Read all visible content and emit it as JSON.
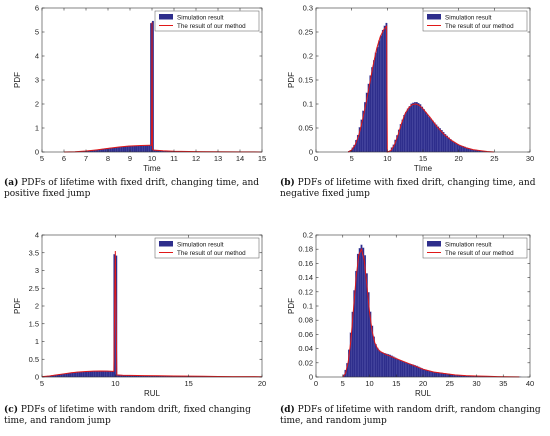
{
  "figure": {
    "bar_color": "#2e2e8c",
    "line_color": "#e01818",
    "axis_color": "#333333"
  },
  "captions": [
    {
      "tag": "(a)",
      "text": " PDFs of lifetime with fixed drift, changing time, and positive fixed jump"
    },
    {
      "tag": "(b)",
      "text": " PDFs of lifetime with fixed drift, changing time, and negative fixed jump"
    },
    {
      "tag": "(c)",
      "text": " PDFs of lifetime with random drift, fixed changing time, and random jump"
    },
    {
      "tag": "(d)",
      "text": " PDFs of lifetime with random drift, random changing time, and random jump"
    }
  ],
  "chart_data": [
    {
      "type": "bar",
      "id": "a",
      "title": "",
      "xlabel": "Time",
      "ylabel": "PDF",
      "xlim": [
        5,
        15
      ],
      "ylim": [
        0,
        6
      ],
      "xticks": [
        5,
        6,
        7,
        8,
        9,
        10,
        11,
        12,
        13,
        14,
        15
      ],
      "yticks": [
        0,
        1,
        2,
        3,
        4,
        5,
        6
      ],
      "legend": [
        "Simulation result",
        "The result of our method"
      ],
      "legend_position": "top-right",
      "x": [
        6.0,
        6.5,
        7.0,
        7.5,
        8.0,
        8.5,
        9.0,
        9.5,
        9.9,
        9.98,
        10.0,
        10.02,
        10.1,
        10.5,
        11.0,
        12.0,
        13.0,
        14.0,
        15.0
      ],
      "series": [
        {
          "name": "Simulation result",
          "kind": "histogram",
          "values": [
            0.0,
            0.01,
            0.04,
            0.09,
            0.15,
            0.21,
            0.25,
            0.27,
            0.28,
            0.28,
            5.4,
            0.1,
            0.08,
            0.05,
            0.03,
            0.015,
            0.008,
            0.004,
            0.002
          ]
        },
        {
          "name": "The result of our method",
          "kind": "line",
          "values": [
            0.0,
            0.01,
            0.04,
            0.09,
            0.15,
            0.21,
            0.25,
            0.27,
            0.28,
            0.28,
            5.4,
            0.1,
            0.08,
            0.05,
            0.03,
            0.015,
            0.008,
            0.004,
            0.002
          ]
        }
      ]
    },
    {
      "type": "bar",
      "id": "b",
      "title": "",
      "xlabel": "TIme",
      "ylabel": "PDF",
      "xlim": [
        0,
        30
      ],
      "ylim": [
        0,
        0.3
      ],
      "xticks": [
        0,
        5,
        10,
        15,
        20,
        25,
        30
      ],
      "yticks": [
        0,
        0.05,
        0.1,
        0.15,
        0.2,
        0.25,
        0.3
      ],
      "legend": [
        "Simulation result",
        "The result of our method"
      ],
      "legend_position": "top-right",
      "x": [
        4.5,
        5.0,
        5.5,
        6.0,
        6.5,
        7.0,
        7.5,
        8.0,
        8.5,
        9.0,
        9.5,
        9.9,
        10.0,
        10.5,
        11.0,
        11.5,
        12.0,
        12.5,
        13.0,
        13.5,
        14.0,
        14.5,
        15.0,
        16.0,
        17.0,
        18.0,
        19.0,
        20.0,
        21.0,
        22.0,
        23.0,
        24.0,
        25.0
      ],
      "series": [
        {
          "name": "Simulation result",
          "kind": "histogram",
          "values": [
            0.0,
            0.004,
            0.015,
            0.035,
            0.065,
            0.1,
            0.14,
            0.18,
            0.215,
            0.24,
            0.255,
            0.262,
            0.0,
            0.003,
            0.015,
            0.035,
            0.06,
            0.08,
            0.092,
            0.099,
            0.1,
            0.097,
            0.09,
            0.072,
            0.052,
            0.036,
            0.024,
            0.015,
            0.009,
            0.005,
            0.003,
            0.001,
            0.0
          ]
        },
        {
          "name": "The result of our method",
          "kind": "line",
          "values": [
            0.0,
            0.004,
            0.015,
            0.035,
            0.065,
            0.1,
            0.14,
            0.18,
            0.215,
            0.24,
            0.255,
            0.262,
            0.0,
            0.003,
            0.015,
            0.035,
            0.06,
            0.08,
            0.092,
            0.099,
            0.1,
            0.097,
            0.09,
            0.072,
            0.052,
            0.036,
            0.024,
            0.015,
            0.009,
            0.005,
            0.003,
            0.001,
            0.0
          ]
        }
      ]
    },
    {
      "type": "bar",
      "id": "c",
      "title": "",
      "xlabel": "RUL",
      "ylabel": "PDF",
      "xlim": [
        5,
        20
      ],
      "ylim": [
        0,
        4
      ],
      "xticks": [
        5,
        10,
        15,
        20
      ],
      "yticks": [
        0,
        0.5,
        1,
        1.5,
        2,
        2.5,
        3,
        3.5,
        4
      ],
      "legend": [
        "Simulation result",
        "The result of our method"
      ],
      "legend_position": "top-right",
      "x": [
        5.0,
        5.5,
        6.0,
        6.5,
        7.0,
        7.5,
        8.0,
        8.5,
        9.0,
        9.5,
        9.9,
        10.0,
        10.1,
        10.5,
        11.0,
        12.0,
        13.0,
        14.0,
        15.0,
        16.0,
        17.0,
        18.0,
        19.0,
        20.0
      ],
      "series": [
        {
          "name": "Simulation result",
          "kind": "histogram",
          "values": [
            0.01,
            0.03,
            0.06,
            0.09,
            0.12,
            0.14,
            0.155,
            0.165,
            0.17,
            0.165,
            0.16,
            3.55,
            0.06,
            0.05,
            0.045,
            0.04,
            0.035,
            0.03,
            0.025,
            0.02,
            0.015,
            0.012,
            0.01,
            0.008
          ]
        },
        {
          "name": "The result of our method",
          "kind": "line",
          "values": [
            0.01,
            0.03,
            0.06,
            0.09,
            0.12,
            0.14,
            0.155,
            0.165,
            0.17,
            0.165,
            0.16,
            3.55,
            0.06,
            0.05,
            0.045,
            0.04,
            0.035,
            0.03,
            0.025,
            0.02,
            0.015,
            0.012,
            0.01,
            0.008
          ]
        }
      ]
    },
    {
      "type": "bar",
      "id": "d",
      "title": "",
      "xlabel": "RUL",
      "ylabel": "PDF",
      "xlim": [
        0,
        40
      ],
      "ylim": [
        0,
        0.2
      ],
      "xticks": [
        0,
        5,
        10,
        15,
        20,
        25,
        30,
        35,
        40
      ],
      "yticks": [
        0,
        0.02,
        0.04,
        0.06,
        0.08,
        0.1,
        0.12,
        0.14,
        0.16,
        0.18,
        0.2
      ],
      "legend": [
        "Simulation result",
        "The result of our method"
      ],
      "legend_position": "top-right",
      "x": [
        5.0,
        5.5,
        6.0,
        6.5,
        7.0,
        7.5,
        8.0,
        8.5,
        9.0,
        9.5,
        10.0,
        10.5,
        11.0,
        11.5,
        12.0,
        13.0,
        14.0,
        15.0,
        16.0,
        17.0,
        18.0,
        19.0,
        20.0,
        22.0,
        24.0,
        26.0,
        28.0,
        30.0,
        32.0,
        34.0,
        36.0,
        38.0
      ],
      "series": [
        {
          "name": "Simulation result",
          "kind": "histogram",
          "values": [
            0.0,
            0.005,
            0.02,
            0.05,
            0.095,
            0.14,
            0.172,
            0.18,
            0.165,
            0.13,
            0.092,
            0.064,
            0.048,
            0.04,
            0.036,
            0.032,
            0.029,
            0.026,
            0.023,
            0.02,
            0.017,
            0.014,
            0.011,
            0.007,
            0.005,
            0.003,
            0.002,
            0.0015,
            0.001,
            0.0005,
            0.0003,
            0.0002
          ]
        },
        {
          "name": "The result of our method",
          "kind": "line",
          "values": [
            0.0,
            0.005,
            0.02,
            0.05,
            0.095,
            0.14,
            0.172,
            0.18,
            0.165,
            0.13,
            0.092,
            0.064,
            0.048,
            0.04,
            0.036,
            0.032,
            0.029,
            0.026,
            0.023,
            0.02,
            0.017,
            0.014,
            0.011,
            0.007,
            0.005,
            0.003,
            0.002,
            0.0015,
            0.001,
            0.0005,
            0.0003,
            0.0002
          ]
        }
      ]
    }
  ]
}
